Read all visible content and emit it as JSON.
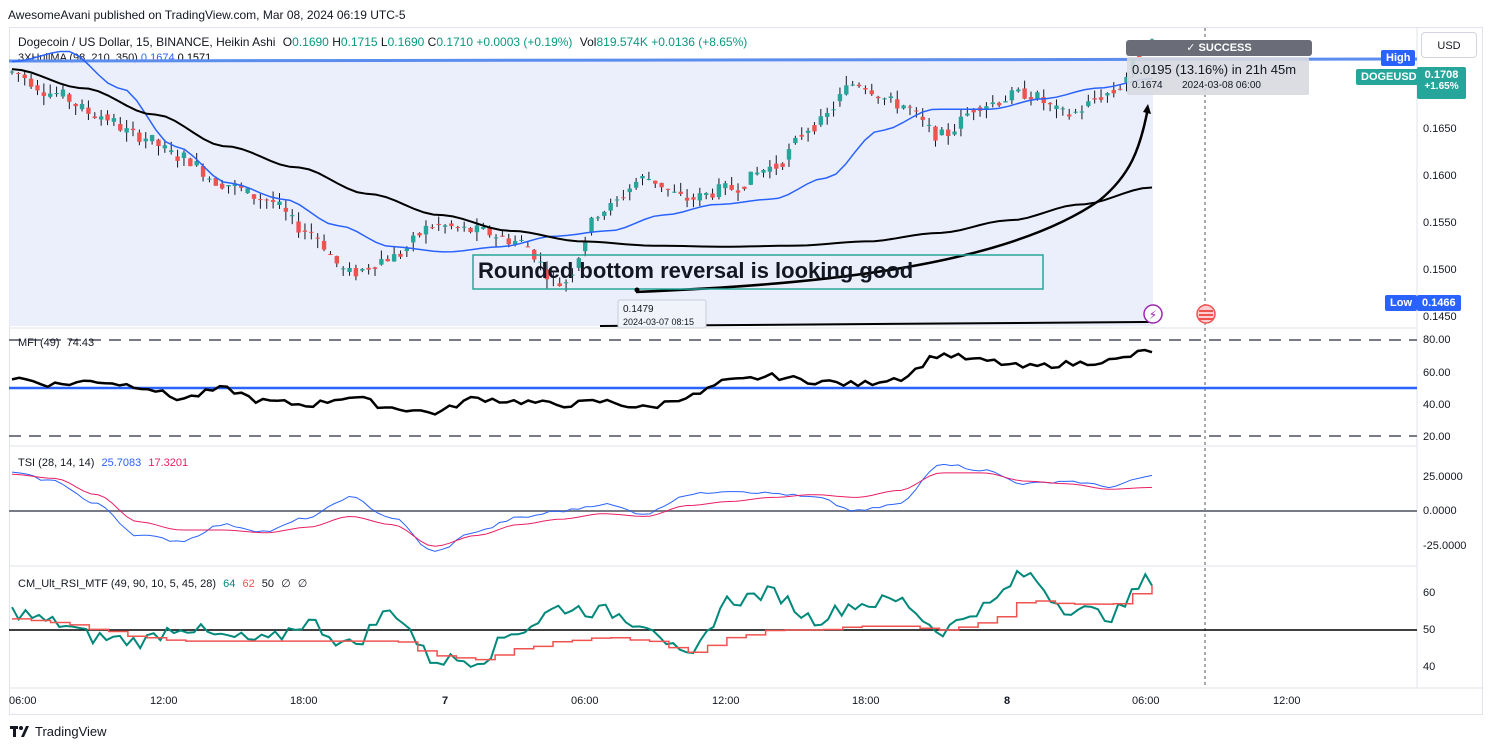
{
  "publisher_line": "AwesomeAvani published on TradingView.com, Mar 08, 2024 06:19 UTC-5",
  "symbol_line": {
    "name": "Dogecoin / US Dollar, 15, BINANCE, Heikin Ashi",
    "o_label": "O",
    "o": "0.1690",
    "h_label": "H",
    "h": "0.1715",
    "l_label": "L",
    "l": "0.1690",
    "c_label": "C",
    "c": "0.1710",
    "chg": "+0.0003 (+0.19%)",
    "vol_label": "Vol",
    "vol": "819.574K",
    "vol_chg": "+0.0136 (+8.65%)"
  },
  "hullma_line": {
    "name": "3XHullMA (98, 210, 350)",
    "v1": "0.1674",
    "v2": "0.1571"
  },
  "currency_button": "USD",
  "high_label": "High",
  "high_value": "0.1708",
  "symbol_badge": "DOGEUSD",
  "price_badge": {
    "price": "0.1708",
    "change": "+1.65%"
  },
  "low_label": "Low",
  "low_value": "0.1466",
  "success_label": "✓ SUCCESS",
  "measure": {
    "line1": "0.0195 (13.16%) in 21h 45m",
    "line2": "0.1674",
    "line3": "2024-03-08  06:00"
  },
  "annotation_text": "Rounded bottom reversal is looking good",
  "low_marker": {
    "price": "0.1479",
    "time": "2024-03-07 08:15"
  },
  "price_axis": [
    "0.1650",
    "0.1600",
    "0.1550",
    "0.1500",
    "0.1450"
  ],
  "mfi": {
    "title": "MFI (49)",
    "value": "74.43",
    "axis": [
      "80.00",
      "60.00",
      "40.00",
      "20.00"
    ]
  },
  "tsi": {
    "title": "TSI (28, 14, 14)",
    "v1": "25.7083",
    "v2": "17.3201",
    "axis": [
      "25.0000",
      "0.0000",
      "-25.0000"
    ]
  },
  "rsi": {
    "title": "CM_Ult_RSI_MTF (49, 90, 10, 5, 45, 28)",
    "v1": "64",
    "v2": "62",
    "v3": "50",
    "v4": "∅",
    "v5": "∅",
    "axis": [
      "60",
      "50",
      "40"
    ]
  },
  "time_axis": [
    "06:00",
    "12:00",
    "18:00",
    "7",
    "06:00",
    "12:00",
    "18:00",
    "8",
    "06:00",
    "12:00"
  ],
  "brand": "TradingView",
  "colors": {
    "up": "#26a69a",
    "down": "#ef5350",
    "hull_fast": "#2962ff",
    "hull_slow": "#000000",
    "tsi_fast": "#2962ff",
    "tsi_slow": "#e91e63",
    "rsi_fast": "#00897b",
    "rsi_slow": "#ef5350",
    "band": "#e8ecfb"
  },
  "chart_data": [
    {
      "type": "candlestick",
      "title": "Dogecoin / US Dollar, 15, BINANCE, Heikin Ashi",
      "x_ticks": [
        "06:00",
        "12:00",
        "18:00",
        "7",
        "06:00",
        "12:00",
        "18:00",
        "8",
        "06:00",
        "12:00"
      ],
      "ylim": [
        0.144,
        0.172
      ],
      "ohlc_anchor_closes": [
        0.168,
        0.166,
        0.164,
        0.162,
        0.16,
        0.1575,
        0.156,
        0.153,
        0.149,
        0.1505,
        0.1535,
        0.153,
        0.152,
        0.148,
        0.155,
        0.158,
        0.156,
        0.157,
        0.159,
        0.163,
        0.167,
        0.165,
        0.162,
        0.165,
        0.166,
        0.164,
        0.166,
        0.1708
      ],
      "series": [
        {
          "name": "3XHullMA fast",
          "last": 0.1674
        },
        {
          "name": "3XHullMA slow",
          "last": 0.1571
        }
      ],
      "high": 0.1708,
      "low": 0.1466
    },
    {
      "type": "line",
      "title": "MFI (49)",
      "ylim": [
        15,
        85
      ],
      "levels": [
        80,
        50,
        20
      ],
      "anchors": [
        57,
        53,
        55,
        52,
        44,
        50,
        42,
        40,
        45,
        38,
        35,
        44,
        42,
        40,
        42,
        38,
        45,
        55,
        58,
        55,
        53,
        57,
        72,
        68,
        64,
        66,
        68,
        74.43
      ]
    },
    {
      "type": "line",
      "title": "TSI (28, 14, 14)",
      "ylim": [
        -35,
        40
      ],
      "series": [
        {
          "name": "TSI",
          "anchors": [
            28,
            22,
            5,
            -18,
            -22,
            -10,
            -15,
            -5,
            10,
            -5,
            -30,
            -15,
            -5,
            0,
            5,
            -2,
            12,
            15,
            13,
            10,
            0,
            5,
            35,
            30,
            20,
            22,
            18,
            25.7083
          ]
        },
        {
          "name": "Signal",
          "anchors": [
            27,
            24,
            12,
            -8,
            -14,
            -14,
            -16,
            -12,
            -4,
            -10,
            -26,
            -18,
            -10,
            -6,
            -2,
            -4,
            4,
            7,
            10,
            12,
            10,
            15,
            28,
            28,
            22,
            20,
            16,
            17.3201
          ]
        }
      ]
    },
    {
      "type": "line",
      "title": "CM_Ult_RSI_MTF (49, 90, 10, 5, 45, 28)",
      "ylim": [
        35,
        66
      ],
      "levels": [
        50
      ],
      "series": [
        {
          "name": "RSI",
          "anchors": [
            55,
            52,
            48,
            47,
            51,
            48,
            47,
            52,
            46,
            55,
            42,
            42,
            50,
            56,
            55,
            52,
            42,
            58,
            60,
            53,
            57,
            58,
            50,
            56,
            65,
            56,
            54,
            64
          ]
        },
        {
          "name": "RSI MA",
          "anchors": [
            53,
            52,
            50,
            48,
            47,
            47,
            47,
            47,
            47,
            47,
            43,
            42,
            45,
            47,
            48,
            47,
            44,
            48,
            50,
            50,
            51,
            51,
            50,
            52,
            58,
            57,
            57,
            62
          ]
        }
      ]
    }
  ]
}
